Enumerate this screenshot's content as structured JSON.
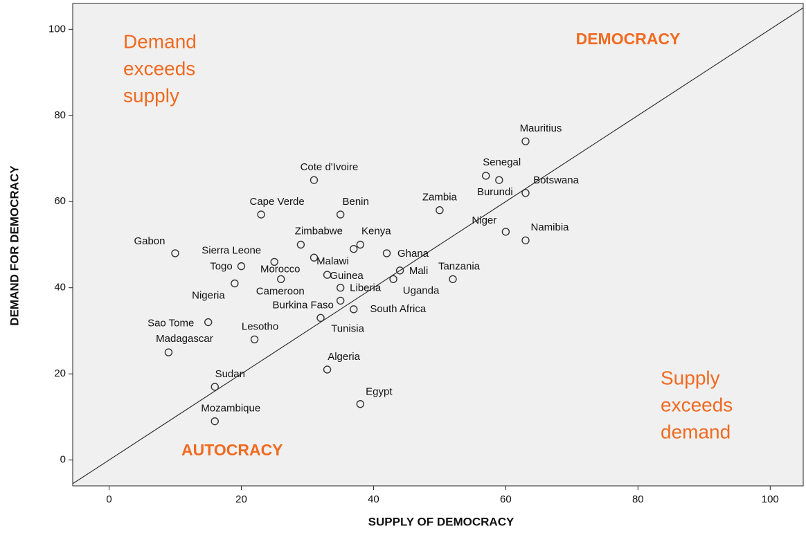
{
  "chart_data": {
    "type": "scatter",
    "x_label": "SUPPLY OF DEMOCRACY",
    "y_label": "DEMAND FOR DEMOCRACY",
    "labels": [
      "Mauritius",
      "Senegal",
      "Burundi",
      "Botswana",
      "Cote d'Ivoire",
      "Zambia",
      "Benin",
      "Cape Verde",
      "Niger",
      "Namibia",
      "Zimbabwe",
      "Kenya",
      "Cameroon",
      "Gabon",
      "Ghana",
      "Malawi",
      "Sierra Leone",
      "Togo",
      "Mali",
      "Guinea",
      "Morocco",
      "Uganda",
      "Tanzania",
      "Nigeria",
      "Liberia",
      "Burkina Faso",
      "South Africa",
      "Tunisia",
      "Sao Tome",
      "Lesotho",
      "Madagascar",
      "Algeria",
      "Sudan",
      "Egypt",
      "Mozambique"
    ],
    "x": [
      63,
      57,
      59,
      63,
      31,
      50,
      35,
      23,
      60,
      63,
      29,
      38,
      37,
      10,
      42,
      31,
      25,
      20,
      44,
      33,
      26,
      43,
      52,
      19,
      35,
      35,
      37,
      32,
      15,
      22,
      9,
      33,
      16,
      38,
      16
    ],
    "y": [
      74,
      66,
      65,
      62,
      65,
      58,
      57,
      57,
      53,
      51,
      50,
      50,
      49,
      48,
      48,
      47,
      46,
      45,
      44,
      43,
      42,
      42,
      42,
      41,
      40,
      37,
      35,
      33,
      32,
      28,
      25,
      21,
      17,
      13,
      9
    ],
    "color": "#333333",
    "xlim": [
      -5.5,
      105
    ],
    "ylim": [
      -6,
      106
    ],
    "xticks": [
      0,
      20,
      40,
      60,
      80,
      100
    ],
    "yticks": [
      0,
      20,
      40,
      60,
      80,
      100
    ],
    "annotations": [
      [
        "Demand",
        "exceeds",
        "supply"
      ],
      [
        "DEMOCRACY"
      ],
      [
        "AUTOCRACY"
      ],
      [
        "Supply",
        "exceeds",
        "demand"
      ]
    ],
    "annotation_color": "#f06a20"
  }
}
